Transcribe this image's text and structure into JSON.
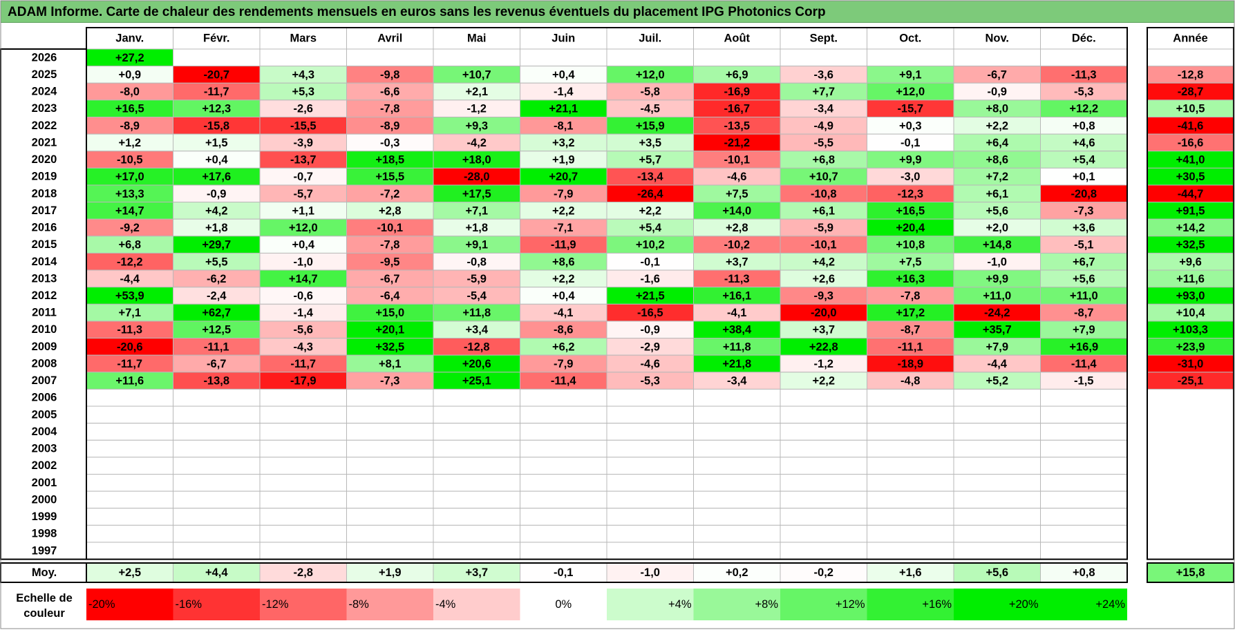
{
  "title": "ADAM Informe. Carte de chaleur des rendements mensuels en euros sans les revenus éventuels du placement IPG Photonics Corp",
  "chart_data": {
    "type": "heatmap",
    "columns": [
      "Janv.",
      "Févr.",
      "Mars",
      "Avril",
      "Mai",
      "Juin",
      "Juil.",
      "Août",
      "Sept.",
      "Oct.",
      "Nov.",
      "Déc."
    ],
    "year_header": "Année",
    "rows": [
      {
        "year": "2026",
        "values": [
          "+27,2",
          null,
          null,
          null,
          null,
          null,
          null,
          null,
          null,
          null,
          null,
          null
        ],
        "annual": null
      },
      {
        "year": "2025",
        "values": [
          "+0,9",
          "-20,7",
          "+4,3",
          "-9,8",
          "+10,7",
          "+0,4",
          "+12,0",
          "+6,9",
          "-3,6",
          "+9,1",
          "-6,7",
          "-11,3"
        ],
        "annual": "-12,8"
      },
      {
        "year": "2024",
        "values": [
          "-8,0",
          "-11,7",
          "+5,3",
          "-6,6",
          "+2,1",
          "-1,4",
          "-5,8",
          "-16,9",
          "+7,7",
          "+12,0",
          "-0,9",
          "-5,3"
        ],
        "annual": "-28,7"
      },
      {
        "year": "2023",
        "values": [
          "+16,5",
          "+12,3",
          "-2,6",
          "-7,8",
          "-1,2",
          "+21,1",
          "-4,5",
          "-16,7",
          "-3,4",
          "-15,7",
          "+8,0",
          "+12,2"
        ],
        "annual": "+10,5"
      },
      {
        "year": "2022",
        "values": [
          "-8,9",
          "-15,8",
          "-15,5",
          "-8,9",
          "+9,3",
          "-8,1",
          "+15,9",
          "-13,5",
          "-4,9",
          "+0,3",
          "+2,2",
          "+0,8"
        ],
        "annual": "-41,6"
      },
      {
        "year": "2021",
        "values": [
          "+1,2",
          "+1,5",
          "-3,9",
          "-0,3",
          "-4,2",
          "+3,2",
          "+3,5",
          "-21,2",
          "-5,5",
          "-0,1",
          "+6,4",
          "+4,6"
        ],
        "annual": "-16,6"
      },
      {
        "year": "2020",
        "values": [
          "-10,5",
          "+0,4",
          "-13,7",
          "+18,5",
          "+18,0",
          "+1,9",
          "+5,7",
          "-10,1",
          "+6,8",
          "+9,9",
          "+8,6",
          "+5,4"
        ],
        "annual": "+41,0"
      },
      {
        "year": "2019",
        "values": [
          "+17,0",
          "+17,6",
          "-0,7",
          "+15,5",
          "-28,0",
          "+20,7",
          "-13,4",
          "-4,6",
          "+10,7",
          "-3,0",
          "+7,2",
          "+0,1"
        ],
        "annual": "+30,5"
      },
      {
        "year": "2018",
        "values": [
          "+13,3",
          "-0,9",
          "-5,7",
          "-7,2",
          "+17,5",
          "-7,9",
          "-26,4",
          "+7,5",
          "-10,8",
          "-12,3",
          "+6,1",
          "-20,8"
        ],
        "annual": "-44,7"
      },
      {
        "year": "2017",
        "values": [
          "+14,7",
          "+4,2",
          "+1,1",
          "+2,8",
          "+7,1",
          "+2,2",
          "+2,2",
          "+14,0",
          "+6,1",
          "+16,5",
          "+5,6",
          "-7,3"
        ],
        "annual": "+91,5"
      },
      {
        "year": "2016",
        "values": [
          "-9,2",
          "+1,8",
          "+12,0",
          "-10,1",
          "+1,8",
          "-7,1",
          "+5,4",
          "+2,8",
          "-5,9",
          "+20,4",
          "+2,0",
          "+3,6"
        ],
        "annual": "+14,2"
      },
      {
        "year": "2015",
        "values": [
          "+6,8",
          "+29,7",
          "+0,4",
          "-7,8",
          "+9,1",
          "-11,9",
          "+10,2",
          "-10,2",
          "-10,1",
          "+10,8",
          "+14,8",
          "-5,1"
        ],
        "annual": "+32,5"
      },
      {
        "year": "2014",
        "values": [
          "-12,2",
          "+5,5",
          "-1,0",
          "-9,5",
          "-0,8",
          "+8,6",
          "-0,1",
          "+3,7",
          "+4,2",
          "+7,5",
          "-1,0",
          "+6,7"
        ],
        "annual": "+9,6"
      },
      {
        "year": "2013",
        "values": [
          "-4,4",
          "-6,2",
          "+14,7",
          "-6,7",
          "-5,9",
          "+2,2",
          "-1,6",
          "-11,3",
          "+2,6",
          "+16,3",
          "+9,9",
          "+5,6"
        ],
        "annual": "+11,6"
      },
      {
        "year": "2012",
        "values": [
          "+53,9",
          "-2,4",
          "-0,6",
          "-6,4",
          "-5,4",
          "+0,4",
          "+21,5",
          "+16,1",
          "-9,3",
          "-7,8",
          "+11,0",
          "+11,0"
        ],
        "annual": "+93,0"
      },
      {
        "year": "2011",
        "values": [
          "+7,1",
          "+62,7",
          "-1,4",
          "+15,0",
          "+11,8",
          "-4,1",
          "-16,5",
          "-4,1",
          "-20,0",
          "+17,2",
          "-24,2",
          "-8,7"
        ],
        "annual": "+10,4"
      },
      {
        "year": "2010",
        "values": [
          "-11,3",
          "+12,5",
          "-5,6",
          "+20,1",
          "+3,4",
          "-8,6",
          "-0,9",
          "+38,4",
          "+3,7",
          "-8,7",
          "+35,7",
          "+7,9"
        ],
        "annual": "+103,3"
      },
      {
        "year": "2009",
        "values": [
          "-20,6",
          "-11,1",
          "-4,3",
          "+32,5",
          "-12,8",
          "+6,2",
          "-2,9",
          "+11,8",
          "+22,8",
          "-11,1",
          "+7,9",
          "+16,9"
        ],
        "annual": "+23,9"
      },
      {
        "year": "2008",
        "values": [
          "-11,7",
          "-6,7",
          "-11,7",
          "+8,1",
          "+20,6",
          "-7,9",
          "-4,6",
          "+21,8",
          "-1,2",
          "-18,9",
          "-4,4",
          "-11,4"
        ],
        "annual": "-31,0"
      },
      {
        "year": "2007",
        "values": [
          "+11,6",
          "-13,8",
          "-17,9",
          "-7,3",
          "+25,1",
          "-11,4",
          "-5,3",
          "-3,4",
          "+2,2",
          "-4,8",
          "+5,2",
          "-1,5"
        ],
        "annual": "-25,1"
      },
      {
        "year": "2006",
        "values": [
          null,
          null,
          null,
          null,
          null,
          null,
          null,
          null,
          null,
          null,
          null,
          null
        ],
        "annual": null
      },
      {
        "year": "2005",
        "values": [
          null,
          null,
          null,
          null,
          null,
          null,
          null,
          null,
          null,
          null,
          null,
          null
        ],
        "annual": null
      },
      {
        "year": "2004",
        "values": [
          null,
          null,
          null,
          null,
          null,
          null,
          null,
          null,
          null,
          null,
          null,
          null
        ],
        "annual": null
      },
      {
        "year": "2003",
        "values": [
          null,
          null,
          null,
          null,
          null,
          null,
          null,
          null,
          null,
          null,
          null,
          null
        ],
        "annual": null
      },
      {
        "year": "2002",
        "values": [
          null,
          null,
          null,
          null,
          null,
          null,
          null,
          null,
          null,
          null,
          null,
          null
        ],
        "annual": null
      },
      {
        "year": "2001",
        "values": [
          null,
          null,
          null,
          null,
          null,
          null,
          null,
          null,
          null,
          null,
          null,
          null
        ],
        "annual": null
      },
      {
        "year": "2000",
        "values": [
          null,
          null,
          null,
          null,
          null,
          null,
          null,
          null,
          null,
          null,
          null,
          null
        ],
        "annual": null
      },
      {
        "year": "1999",
        "values": [
          null,
          null,
          null,
          null,
          null,
          null,
          null,
          null,
          null,
          null,
          null,
          null
        ],
        "annual": null
      },
      {
        "year": "1998",
        "values": [
          null,
          null,
          null,
          null,
          null,
          null,
          null,
          null,
          null,
          null,
          null,
          null
        ],
        "annual": null
      },
      {
        "year": "1997",
        "values": [
          null,
          null,
          null,
          null,
          null,
          null,
          null,
          null,
          null,
          null,
          null,
          null
        ],
        "annual": null
      }
    ],
    "average": {
      "label": "Moy.",
      "values": [
        "+2,5",
        "+4,4",
        "-2,8",
        "+1,9",
        "+3,7",
        "-0,1",
        "-1,0",
        "+0,2",
        "-0,2",
        "+1,6",
        "+5,6",
        "+0,8"
      ],
      "annual": "+15,8"
    },
    "scale": {
      "label_line1": "Echelle de",
      "label_line2": "couleur",
      "items": [
        "-20%",
        "-16%",
        "-12%",
        "-8%",
        "-4%",
        "0%",
        "+4%",
        "+8%",
        "+12%",
        "+16%",
        "+20%",
        "+24%"
      ]
    },
    "colors": {
      "max_red": "#ff0000",
      "max_green": "#00ee00",
      "neutral": "#ffffff",
      "title_bg": "#7dca7a"
    }
  }
}
